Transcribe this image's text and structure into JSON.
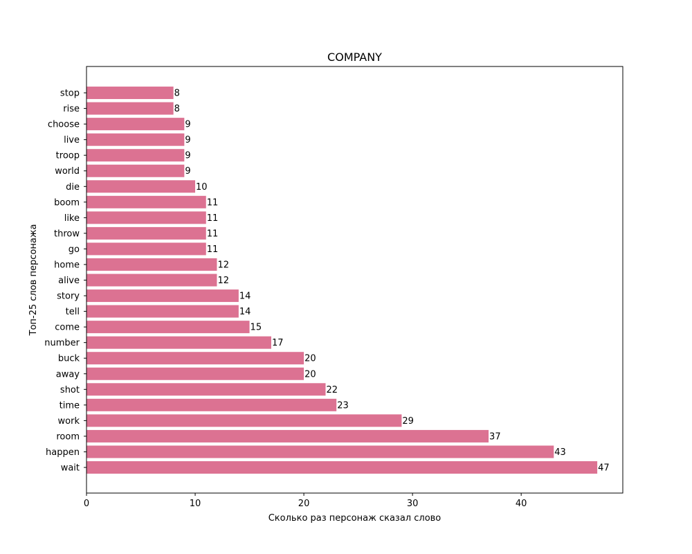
{
  "chart_data": {
    "type": "bar",
    "orientation": "horizontal",
    "title": "COMPANY",
    "xlabel": "Сколько раз персонаж сказал слово",
    "ylabel": "Топ-25 слов персонажа",
    "xlim": [
      0,
      49.35
    ],
    "xticks": [
      0,
      10,
      20,
      30,
      40
    ],
    "categories": [
      "wait",
      "happen",
      "room",
      "work",
      "time",
      "shot",
      "away",
      "buck",
      "number",
      "come",
      "tell",
      "story",
      "alive",
      "home",
      "go",
      "throw",
      "like",
      "boom",
      "die",
      "world",
      "troop",
      "live",
      "choose",
      "rise",
      "stop"
    ],
    "values": [
      47,
      43,
      37,
      29,
      23,
      22,
      20,
      20,
      17,
      15,
      14,
      14,
      12,
      12,
      11,
      11,
      11,
      11,
      10,
      9,
      9,
      9,
      9,
      8,
      8
    ],
    "bar_color": "#dc7292",
    "grid": false,
    "legend": "none"
  }
}
